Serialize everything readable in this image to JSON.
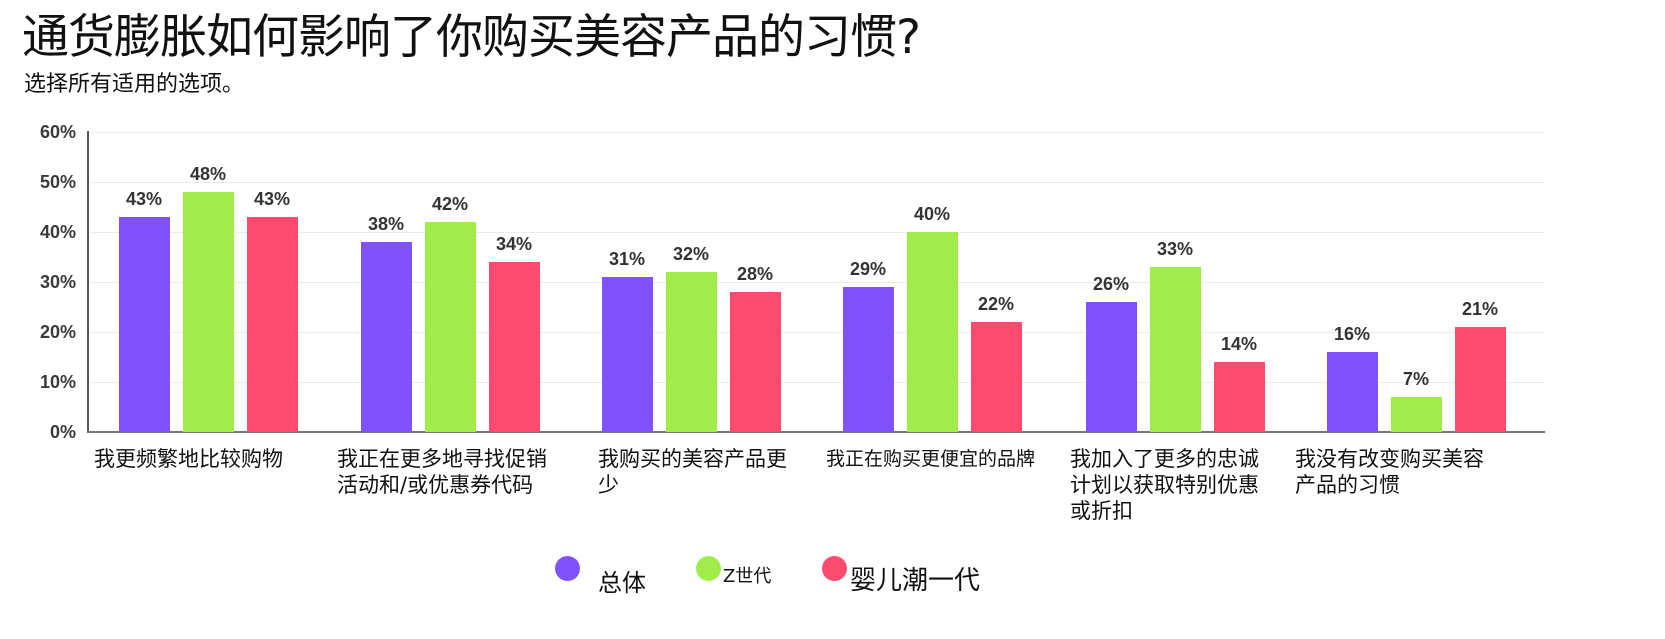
{
  "header": {
    "title": "通货膨胀如何影响了你购买美容产品的习惯?",
    "subtitle": "选择所有适用的选项。"
  },
  "colors": {
    "overall": "#7f52fb",
    "gen_z": "#a1ec4b",
    "boomers": "#fd4a6f",
    "axis": "#555555",
    "grid": "#ececec"
  },
  "legend": [
    {
      "label": "总体",
      "color": "#7f52fb"
    },
    {
      "label": "Z世代",
      "color": "#a1ec4b"
    },
    {
      "label": "婴儿潮一代",
      "color": "#fd4a6f"
    }
  ],
  "yaxis": {
    "ticks": [
      "60%",
      "50%",
      "40%",
      "30%",
      "20%",
      "10%",
      "0%"
    ]
  },
  "chart_data": {
    "type": "bar",
    "title": "通货膨胀如何影响了你购买美容产品的习惯?",
    "subtitle": "选择所有适用的选项。",
    "xlabel": "",
    "ylabel": "",
    "ylim": [
      0,
      60
    ],
    "yticks": [
      0,
      10,
      20,
      30,
      40,
      50,
      60
    ],
    "grid": true,
    "legend_position": "bottom",
    "categories": [
      "我更频繁地比较购物",
      "我正在更多地寻找促销活动和/或优惠券代码",
      "我购买的美容产品更少",
      "我正在购买更便宜的品牌",
      "我加入了更多的忠诚计划以获取特别优惠或折扣",
      "我没有改变购买美容产品的习惯"
    ],
    "category_lines": [
      [
        "我更频繁地比较购物"
      ],
      [
        "我正在更多地寻找促销",
        "活动和/或优惠券代码"
      ],
      [
        "我购买的美容产品更",
        "少"
      ],
      [
        "我正在购买更便宜的品牌"
      ],
      [
        "我加入了更多的忠诚",
        "计划以获取特别优惠",
        "或折扣"
      ],
      [
        "我没有改变购买美容",
        "产品的习惯"
      ]
    ],
    "series": [
      {
        "name": "总体",
        "color": "#7f52fb",
        "values": [
          43,
          38,
          31,
          29,
          26,
          16
        ],
        "labels": [
          "43%",
          "38%",
          "31%",
          "29%",
          "26%",
          "16%"
        ]
      },
      {
        "name": "Z世代",
        "color": "#a1ec4b",
        "values": [
          48,
          42,
          32,
          40,
          33,
          7
        ],
        "labels": [
          "48%",
          "42%",
          "32%",
          "40%",
          "33%",
          "7%"
        ]
      },
      {
        "name": "婴儿潮一代",
        "color": "#fd4a6f",
        "values": [
          43,
          34,
          28,
          22,
          14,
          21
        ],
        "labels": [
          "43%",
          "34%",
          "28%",
          "22%",
          "14%",
          "21%"
        ]
      }
    ]
  }
}
